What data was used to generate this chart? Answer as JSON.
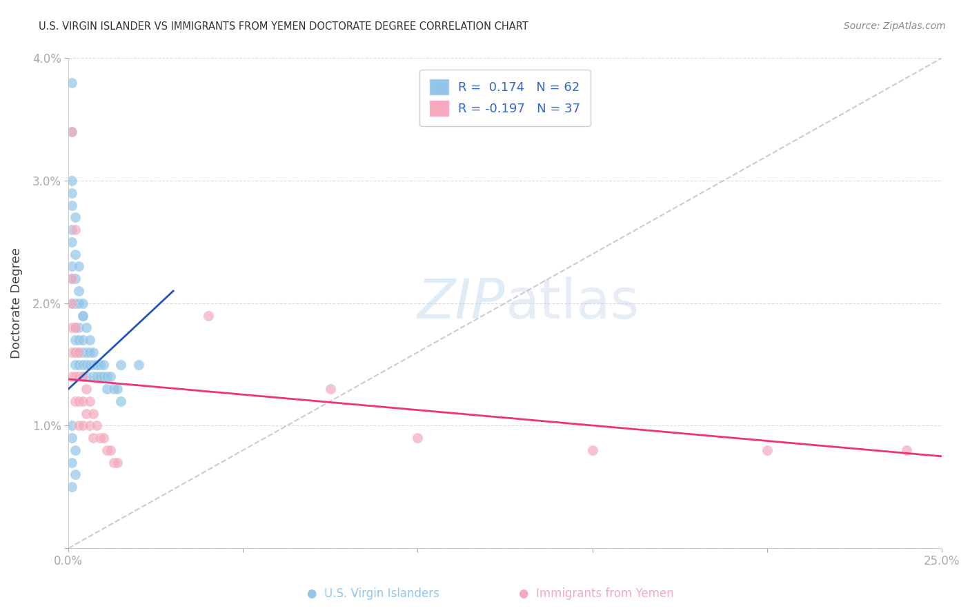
{
  "title": "U.S. VIRGIN ISLANDER VS IMMIGRANTS FROM YEMEN DOCTORATE DEGREE CORRELATION CHART",
  "source": "Source: ZipAtlas.com",
  "ylabel": "Doctorate Degree",
  "xlim": [
    0.0,
    0.25
  ],
  "ylim": [
    0.0,
    0.04
  ],
  "xtick_vals": [
    0.0,
    0.05,
    0.1,
    0.15,
    0.2,
    0.25
  ],
  "xtick_labels": [
    "0.0%",
    "",
    "",
    "",
    "",
    "25.0%"
  ],
  "ytick_vals": [
    0.0,
    0.01,
    0.02,
    0.03,
    0.04
  ],
  "ytick_labels": [
    "",
    "1.0%",
    "2.0%",
    "3.0%",
    "4.0%"
  ],
  "R_blue": 0.174,
  "N_blue": 62,
  "R_pink": -0.197,
  "N_pink": 37,
  "blue_scatter_color": "#92C5E8",
  "pink_scatter_color": "#F4AABC",
  "blue_line_color": "#2255BB",
  "pink_line_color": "#EE3377",
  "diag_color": "#BBBBBB",
  "blue_line_x0": 0.0,
  "blue_line_y0": 0.013,
  "blue_line_x1": 0.03,
  "blue_line_y1": 0.021,
  "pink_line_x0": 0.0,
  "pink_line_y0": 0.0138,
  "pink_line_x1": 0.25,
  "pink_line_y1": 0.0075,
  "blue_x": [
    0.001,
    0.001,
    0.001,
    0.001,
    0.001,
    0.001,
    0.002,
    0.002,
    0.002,
    0.002,
    0.002,
    0.002,
    0.003,
    0.003,
    0.003,
    0.003,
    0.003,
    0.004,
    0.004,
    0.004,
    0.004,
    0.004,
    0.005,
    0.005,
    0.005,
    0.005,
    0.006,
    0.006,
    0.006,
    0.007,
    0.007,
    0.007,
    0.008,
    0.008,
    0.009,
    0.009,
    0.01,
    0.01,
    0.011,
    0.011,
    0.012,
    0.013,
    0.014,
    0.015,
    0.001,
    0.001,
    0.002,
    0.002,
    0.003,
    0.003,
    0.004,
    0.004,
    0.001,
    0.001,
    0.002,
    0.001,
    0.002,
    0.001,
    0.015,
    0.02,
    0.001,
    0.001
  ],
  "blue_y": [
    0.028,
    0.026,
    0.025,
    0.023,
    0.022,
    0.02,
    0.022,
    0.02,
    0.018,
    0.017,
    0.016,
    0.015,
    0.02,
    0.018,
    0.017,
    0.016,
    0.015,
    0.019,
    0.017,
    0.016,
    0.015,
    0.014,
    0.018,
    0.016,
    0.015,
    0.014,
    0.017,
    0.016,
    0.015,
    0.016,
    0.015,
    0.014,
    0.015,
    0.014,
    0.015,
    0.014,
    0.015,
    0.014,
    0.014,
    0.013,
    0.014,
    0.013,
    0.013,
    0.012,
    0.03,
    0.029,
    0.027,
    0.024,
    0.023,
    0.021,
    0.02,
    0.019,
    0.01,
    0.009,
    0.008,
    0.007,
    0.006,
    0.005,
    0.015,
    0.015,
    0.038,
    0.034
  ],
  "pink_x": [
    0.001,
    0.001,
    0.001,
    0.001,
    0.001,
    0.002,
    0.002,
    0.002,
    0.002,
    0.003,
    0.003,
    0.003,
    0.003,
    0.004,
    0.004,
    0.004,
    0.005,
    0.005,
    0.006,
    0.006,
    0.007,
    0.007,
    0.008,
    0.009,
    0.01,
    0.011,
    0.012,
    0.013,
    0.014,
    0.04,
    0.075,
    0.1,
    0.15,
    0.2,
    0.24,
    0.001,
    0.002
  ],
  "pink_y": [
    0.022,
    0.02,
    0.018,
    0.016,
    0.014,
    0.018,
    0.016,
    0.014,
    0.012,
    0.016,
    0.014,
    0.012,
    0.01,
    0.014,
    0.012,
    0.01,
    0.013,
    0.011,
    0.012,
    0.01,
    0.011,
    0.009,
    0.01,
    0.009,
    0.009,
    0.008,
    0.008,
    0.007,
    0.007,
    0.019,
    0.013,
    0.009,
    0.008,
    0.008,
    0.008,
    0.034,
    0.026
  ]
}
